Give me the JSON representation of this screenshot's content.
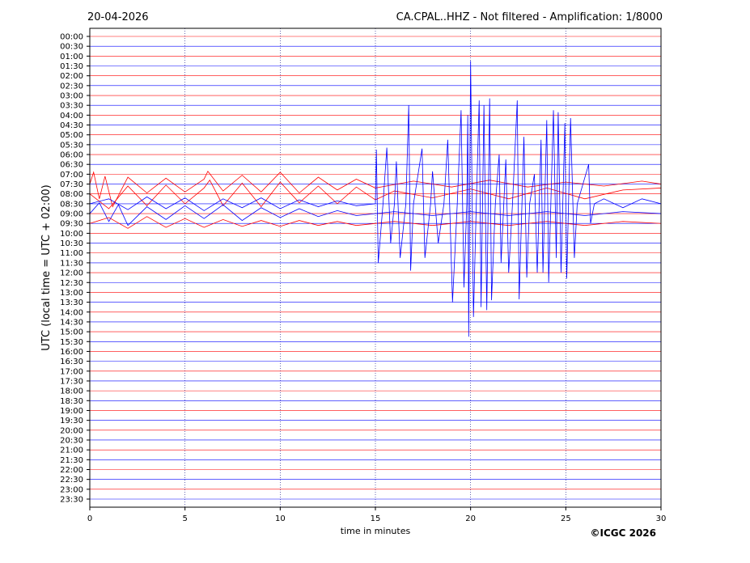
{
  "chart_data": {
    "type": "helicorder",
    "title": "CA.CPAL..HHZ - Not filtered - Amplification: 1/8000",
    "subtitle": "20-04-2026",
    "y_label": "UTC (local time = UTC + 02:00)",
    "x_label": "time in minutes",
    "credit": "©ICGC 2026",
    "xlim": [
      0,
      30
    ],
    "xticks": [
      0,
      5,
      10,
      15,
      20,
      25,
      30
    ],
    "grid": true,
    "rows": [
      "00:00",
      "00:30",
      "01:00",
      "01:30",
      "02:00",
      "02:30",
      "03:00",
      "03:30",
      "04:00",
      "04:30",
      "05:00",
      "05:30",
      "06:00",
      "06:30",
      "07:00",
      "07:30",
      "08:00",
      "08:30",
      "09:00",
      "09:30",
      "10:00",
      "10:30",
      "11:00",
      "11:30",
      "12:00",
      "12:30",
      "13:00",
      "13:30",
      "14:00",
      "14:30",
      "15:00",
      "15:30",
      "16:00",
      "16:30",
      "17:00",
      "17:30",
      "18:00",
      "18:30",
      "19:00",
      "19:30",
      "20:00",
      "20:30",
      "21:00",
      "21:30",
      "22:00",
      "22:30",
      "23:00",
      "23:30"
    ],
    "row_colors": [
      "#ff0000",
      "#0000ff"
    ],
    "traces": [
      {
        "row": "07:30",
        "color": "#ff0000",
        "x": [
          0,
          0.2,
          0.5,
          0.8,
          1.2,
          2,
          3,
          4,
          5,
          6,
          6.2,
          7,
          8,
          9,
          10,
          11,
          12,
          13,
          14,
          15,
          17,
          19,
          21,
          23,
          25,
          27,
          29,
          30
        ],
        "values": [
          0,
          1.2,
          -1.5,
          0.8,
          -2.3,
          0.7,
          -0.9,
          0.6,
          -0.8,
          0.5,
          1.3,
          -0.7,
          0.9,
          -0.8,
          1.2,
          -0.9,
          0.7,
          -0.6,
          0.5,
          -0.4,
          0.3,
          -0.3,
          0.4,
          -0.3,
          0.2,
          -0.2,
          0.3,
          0
        ]
      },
      {
        "row": "08:00",
        "color": "#ff0000",
        "x": [
          0,
          1,
          2,
          3,
          4,
          5,
          6,
          6.3,
          7,
          8,
          9,
          10,
          11,
          12,
          13,
          14,
          15,
          16,
          18,
          20,
          22,
          24,
          26,
          28,
          30
        ],
        "values": [
          0,
          -1.5,
          0.8,
          -1.2,
          0.9,
          -1,
          0.6,
          1.4,
          -1.2,
          1.1,
          -1.3,
          1.2,
          -0.9,
          0.8,
          -1,
          0.7,
          -0.6,
          0.3,
          -0.4,
          0.5,
          -0.5,
          0.6,
          -0.5,
          0.4,
          0.6
        ]
      },
      {
        "row": "09:00",
        "color": "#0000ff",
        "x": [
          0,
          0.5,
          1,
          1.5,
          2,
          3,
          4,
          5,
          6,
          7,
          8,
          9,
          10,
          11,
          12,
          13,
          14,
          16,
          18,
          20,
          22,
          24,
          26,
          28,
          30
        ],
        "values": [
          0,
          1.1,
          -0.8,
          0.9,
          -1.2,
          0.7,
          -0.6,
          0.8,
          -0.5,
          0.9,
          -0.7,
          0.6,
          -0.4,
          0.5,
          -0.3,
          0.3,
          -0.2,
          0.2,
          -0.2,
          0.2,
          -0.2,
          0.2,
          -0.2,
          0.2,
          0
        ]
      },
      {
        "row": "09:30",
        "color": "#ff0000",
        "x": [
          0,
          1,
          2,
          3,
          4,
          5,
          6,
          7,
          8,
          9,
          10,
          11,
          12,
          13,
          14,
          16,
          18,
          20,
          22,
          24,
          26,
          28,
          30
        ],
        "values": [
          0,
          0.6,
          -0.5,
          0.7,
          -0.4,
          0.5,
          -0.4,
          0.4,
          -0.3,
          0.3,
          -0.3,
          0.3,
          -0.2,
          0.2,
          -0.2,
          0.2,
          -0.2,
          0.2,
          -0.2,
          0.2,
          -0.2,
          0.2,
          0
        ]
      },
      {
        "row": "08:30",
        "color": "#0000ff",
        "x": [
          0,
          1,
          2,
          3,
          4,
          5,
          6,
          7,
          8,
          9,
          10,
          11,
          12,
          13,
          14,
          15,
          15.05,
          15.15,
          15.4,
          15.6,
          15.8,
          16,
          16.1,
          16.3,
          16.6,
          16.75,
          16.85,
          17,
          17.45,
          17.6,
          17.9,
          18,
          18.3,
          18.6,
          18.8,
          19.05,
          19.3,
          19.5,
          19.65,
          19.8,
          19.85,
          19.9,
          20,
          20.15,
          20.3,
          20.45,
          20.55,
          20.7,
          20.85,
          21,
          21.1,
          21.3,
          21.5,
          21.6,
          21.85,
          22,
          22.2,
          22.45,
          22.55,
          22.8,
          22.95,
          23.1,
          23.35,
          23.5,
          23.7,
          23.8,
          24,
          24.1,
          24.35,
          24.5,
          24.6,
          24.75,
          24.95,
          25.05,
          25.25,
          25.45,
          25.6,
          26.2,
          26.3,
          26.5,
          27,
          28,
          29,
          30
        ],
        "values": [
          0,
          0.5,
          -0.6,
          0.7,
          -0.5,
          0.6,
          -0.7,
          0.5,
          -0.4,
          0.6,
          -0.5,
          0.4,
          -0.3,
          0.3,
          -0.2,
          0,
          5.5,
          -6,
          0,
          5.7,
          -4,
          0,
          4.3,
          -5.5,
          0,
          10,
          -6.8,
          0,
          5.6,
          -5.5,
          0,
          3.3,
          -4,
          0,
          6.5,
          -10,
          0,
          9.5,
          -8.5,
          0,
          9,
          -13.5,
          14.5,
          -11.5,
          0,
          10.5,
          -10.5,
          10,
          -10.8,
          10.7,
          -9.8,
          0,
          5,
          -6,
          4.5,
          -7,
          0,
          10.5,
          -9.7,
          6.8,
          -7.5,
          0,
          3,
          -7,
          6.5,
          -7,
          8.5,
          -8,
          9.5,
          -5.5,
          9.3,
          -7,
          8.2,
          -7.6,
          8.7,
          -5.5,
          0,
          4,
          -2,
          0,
          0.5,
          -0.4,
          0.5,
          0
        ]
      }
    ]
  }
}
